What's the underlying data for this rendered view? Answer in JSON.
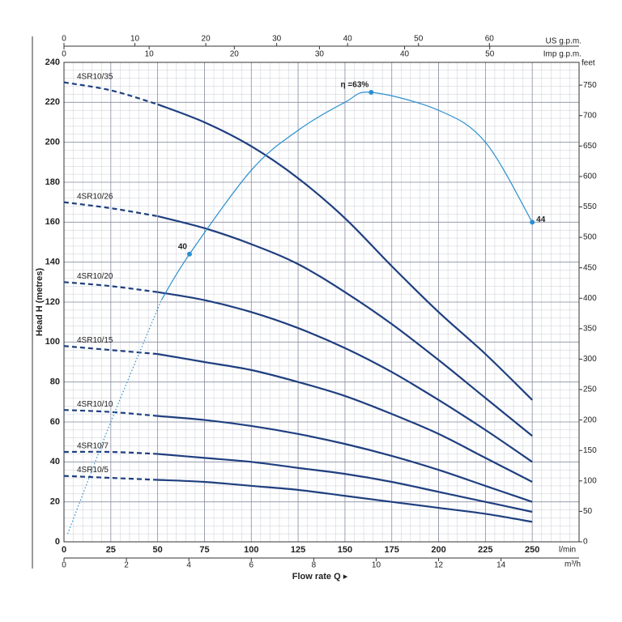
{
  "chart_data": {
    "type": "line",
    "x_label": "l/min",
    "y_label": "Head H (metres)",
    "xlabel_title": "Flow rate Q ▸",
    "xlim": [
      0,
      275
    ],
    "xticks": [
      0,
      25,
      50,
      75,
      100,
      125,
      150,
      175,
      200,
      225,
      250
    ],
    "ylim": [
      0,
      240
    ],
    "yticks": [
      0,
      20,
      40,
      60,
      80,
      100,
      120,
      140,
      160,
      180,
      200,
      220,
      240
    ],
    "y2_label": "feet",
    "y2lim": [
      0,
      787.4
    ],
    "y2ticks": [
      0,
      50,
      100,
      150,
      200,
      250,
      300,
      350,
      400,
      450,
      500,
      550,
      600,
      650,
      700,
      750
    ],
    "bottom_axis": {
      "label": "m³/h",
      "lim": [
        0,
        16.5
      ],
      "ticks": [
        0,
        2,
        4,
        6,
        8,
        10,
        12,
        14
      ]
    },
    "top_axes": [
      {
        "label": "US g.p.m.",
        "lim": [
          0,
          72.65
        ],
        "ticks": [
          0,
          10,
          20,
          30,
          40,
          50,
          60
        ]
      },
      {
        "label": "Imp g.p.m.",
        "lim": [
          0,
          60.49
        ],
        "ticks": [
          0,
          10,
          20,
          30,
          40,
          50
        ]
      }
    ],
    "grid": true,
    "dashed_below": 50,
    "x": [
      0,
      25,
      50,
      75,
      100,
      125,
      150,
      175,
      200,
      225,
      250
    ],
    "series": [
      {
        "name": "4SR10/35",
        "color": "#1f3f7f",
        "values": [
          230,
          226,
          219,
          210,
          198,
          182,
          162,
          138,
          115,
          94,
          71
        ]
      },
      {
        "name": "4SR10/26",
        "color": "#1f3f7f",
        "values": [
          170,
          167,
          163,
          157,
          149,
          139,
          125,
          109,
          91,
          72,
          53
        ]
      },
      {
        "name": "4SR10/20",
        "color": "#1f3f7f",
        "values": [
          130,
          128,
          125,
          121,
          115,
          107,
          97,
          85,
          71,
          56,
          40
        ]
      },
      {
        "name": "4SR10/15",
        "color": "#1f3f7f",
        "values": [
          98,
          96,
          94,
          90,
          86,
          80,
          73,
          64,
          54,
          42,
          30
        ]
      },
      {
        "name": "4SR10/10",
        "color": "#1f3f7f",
        "values": [
          66,
          65,
          63,
          61,
          58,
          54,
          49,
          43,
          36,
          28,
          20
        ]
      },
      {
        "name": "4SR10/7",
        "color": "#1f3f7f",
        "values": [
          45,
          45,
          44,
          42,
          40,
          37,
          34,
          30,
          25,
          20,
          15
        ]
      },
      {
        "name": "4SR10/5",
        "color": "#1f3f7f",
        "values": [
          33,
          32,
          31,
          30,
          28,
          26,
          23,
          20,
          17,
          14,
          10
        ]
      }
    ],
    "efficiency_curve": {
      "color": "#2a8fd0",
      "dotted_below": 52,
      "x": [
        2,
        25,
        52,
        67,
        100,
        125,
        150,
        164,
        200,
        225,
        250
      ],
      "values": [
        4,
        60,
        121,
        144,
        186,
        206,
        220,
        225,
        216,
        200,
        160
      ],
      "points": [
        {
          "x": 67,
          "y": 144,
          "label": "40"
        },
        {
          "x": 164,
          "y": 225,
          "label": "η =63%"
        },
        {
          "x": 250,
          "y": 160,
          "label": "44"
        }
      ]
    }
  }
}
